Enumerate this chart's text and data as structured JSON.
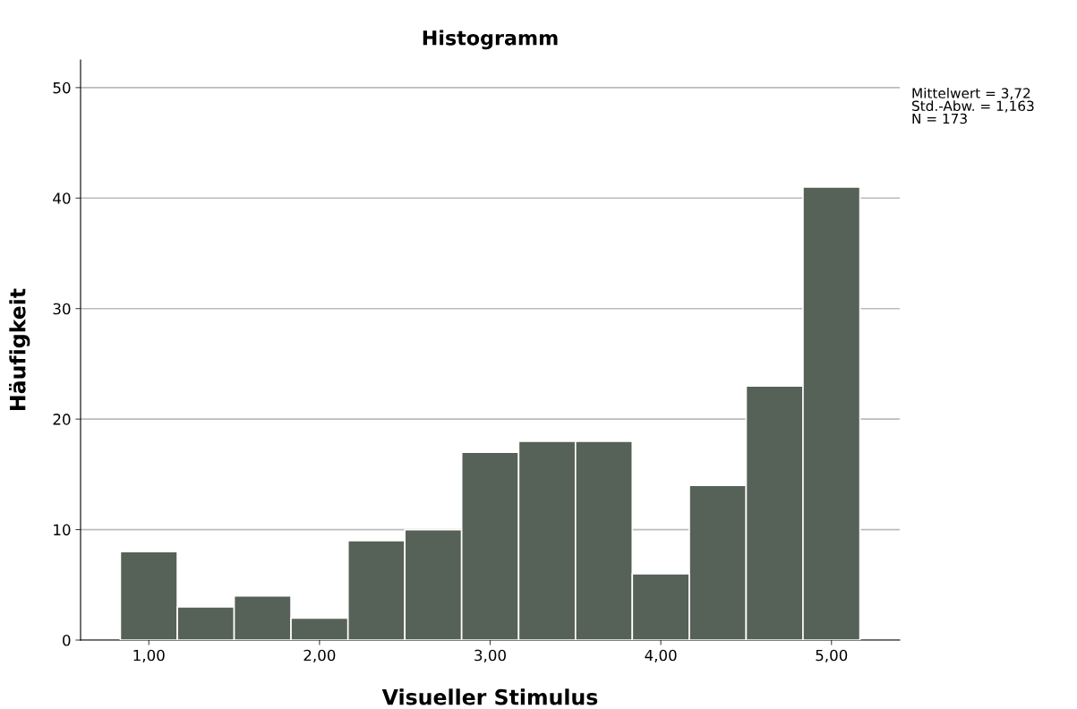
{
  "chart_data": {
    "type": "histogram",
    "title": "Histogramm",
    "xlabel": "Visueller Stimulus",
    "ylabel": "Häufigkeit",
    "bins": [
      0.833,
      1.167,
      1.5,
      1.833,
      2.167,
      2.5,
      2.833,
      3.167,
      3.5,
      3.833,
      4.167,
      4.5,
      4.833,
      5.167
    ],
    "values": [
      8,
      3,
      4,
      2,
      9,
      10,
      17,
      18,
      18,
      6,
      14,
      23,
      41
    ],
    "color": "#566157",
    "xlim": [
      0.6,
      5.4
    ],
    "xticks": [
      {
        "value": 1,
        "label": "1,00"
      },
      {
        "value": 2,
        "label": "2,00"
      },
      {
        "value": 3,
        "label": "3,00"
      },
      {
        "value": 4,
        "label": "4,00"
      },
      {
        "value": 5,
        "label": "5,00"
      }
    ],
    "ylim": [
      0,
      52.5
    ],
    "yticks": [
      0,
      10,
      20,
      30,
      40,
      50
    ],
    "grid": "y",
    "annotations": [
      "Mittelwert = 3,72\nStd.-Abw. = 1,163\nN = 173"
    ]
  }
}
